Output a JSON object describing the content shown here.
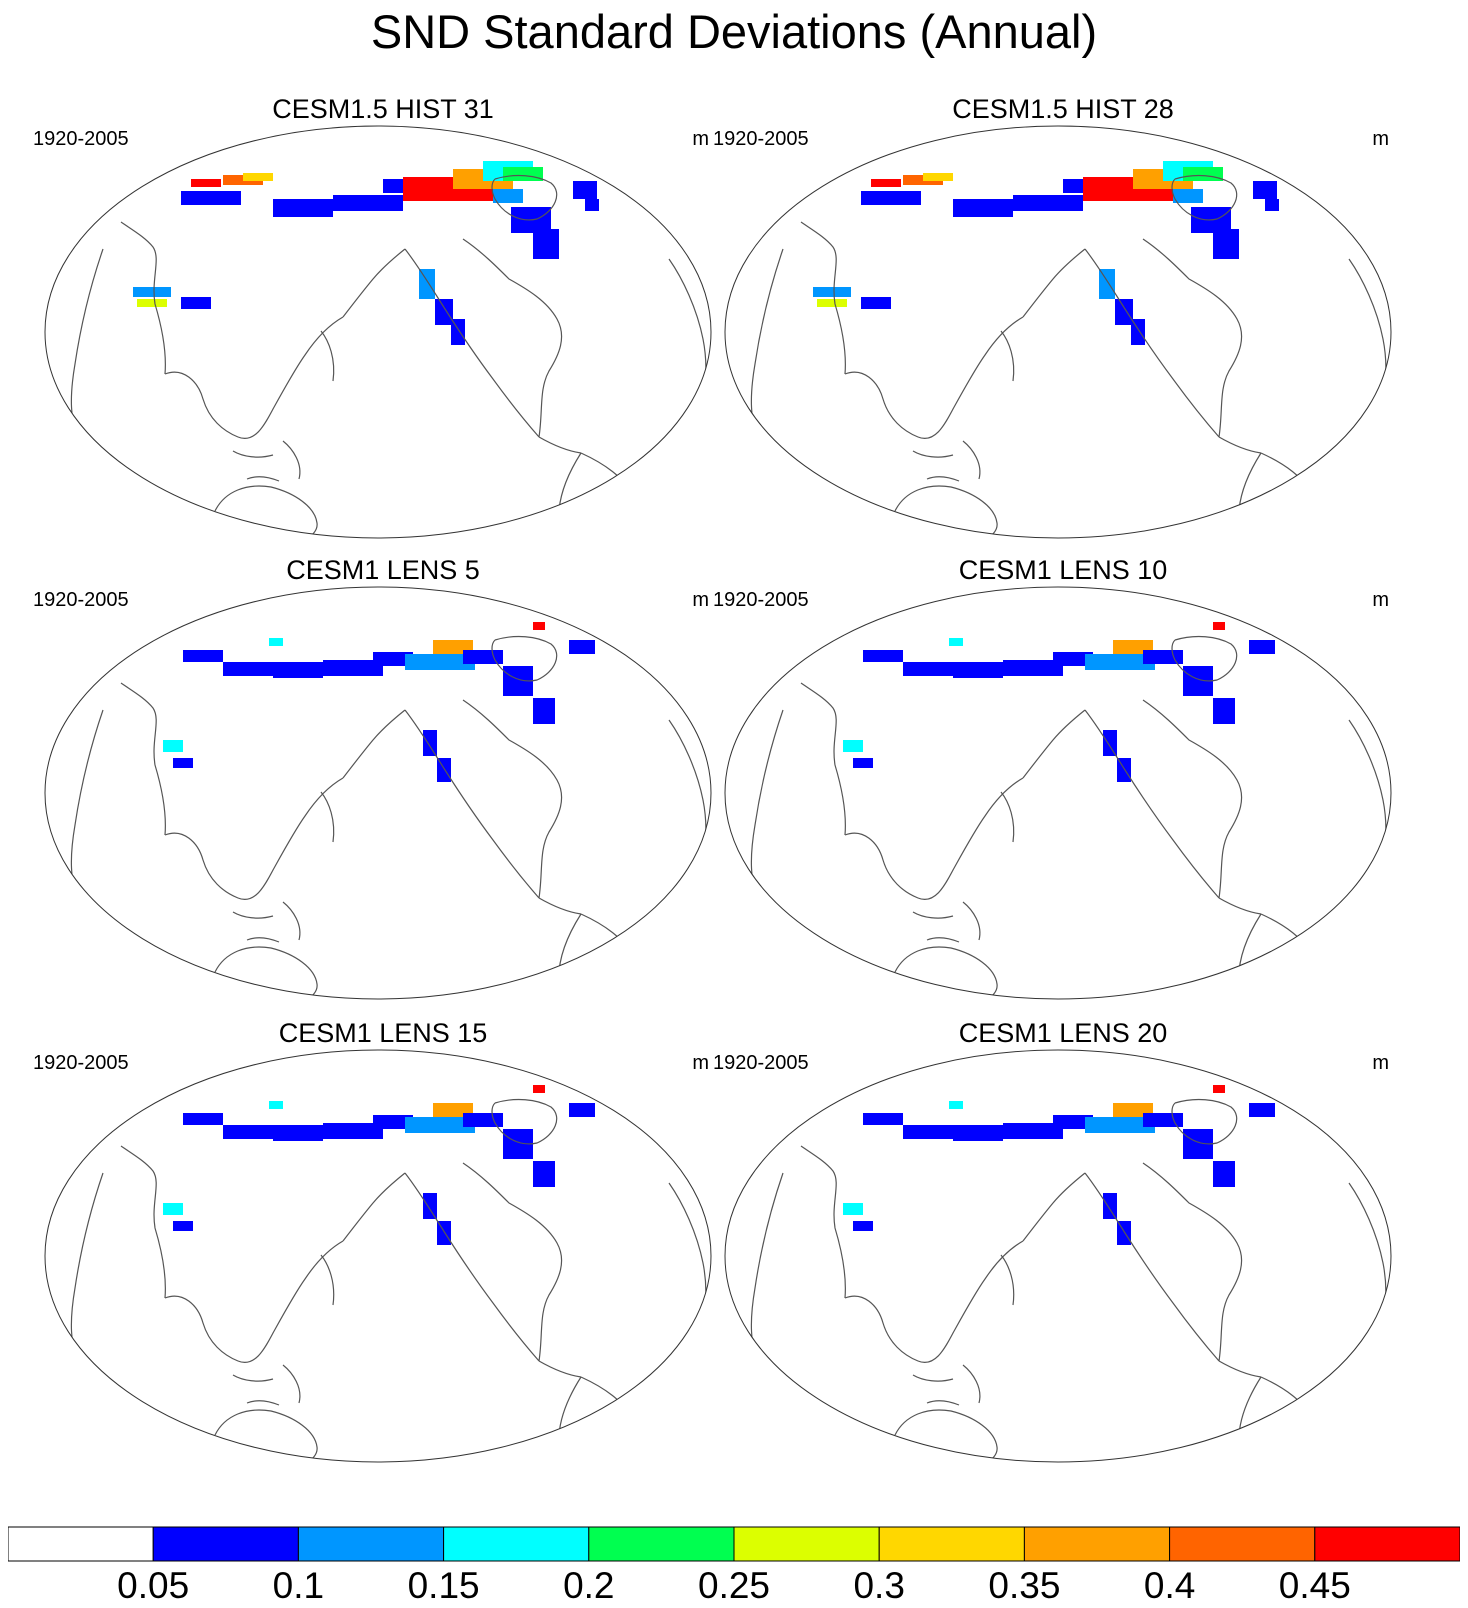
{
  "figure": {
    "title": "SND Standard Deviations (Annual)"
  },
  "panels": [
    {
      "title": "CESM1.5 HIST 31",
      "period": "1920-2005",
      "units": "m",
      "intensity": "high"
    },
    {
      "title": "CESM1.5 HIST 28",
      "period": "1920-2005",
      "units": "m",
      "intensity": "high"
    },
    {
      "title": "CESM1 LENS 5",
      "period": "1920-2005",
      "units": "m",
      "intensity": "low"
    },
    {
      "title": "CESM1 LENS 10",
      "period": "1920-2005",
      "units": "m",
      "intensity": "low"
    },
    {
      "title": "CESM1 LENS 15",
      "period": "1920-2005",
      "units": "m",
      "intensity": "low"
    },
    {
      "title": "CESM1 LENS 20",
      "period": "1920-2005",
      "units": "m",
      "intensity": "low"
    }
  ],
  "colorbar": {
    "labels": [
      "0.05",
      "0.1",
      "0.15",
      "0.2",
      "0.25",
      "0.3",
      "0.35",
      "0.4",
      "0.45"
    ],
    "colors": [
      "#ffffff",
      "#0000ff",
      "#0096ff",
      "#00ffff",
      "#00ff50",
      "#dcff00",
      "#ffd700",
      "#ffa000",
      "#ff6400",
      "#ff0000"
    ]
  },
  "colors": {
    "coastline": "#555555",
    "border": "#333333"
  }
}
